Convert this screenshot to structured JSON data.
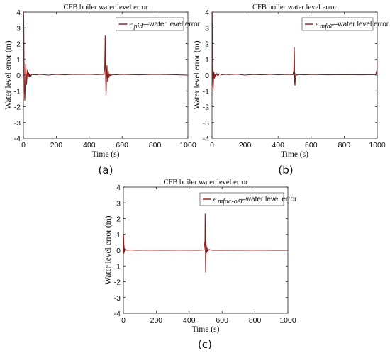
{
  "series_color": "#8b1a1a",
  "chart_data": [
    {
      "type": "line",
      "panel_label": "(a)",
      "title": "CFB boiler water level error",
      "xlabel": "Time  (s)",
      "ylabel": "Water level error  (m)",
      "xlim": [
        0,
        1000
      ],
      "ylim": [
        -4,
        4
      ],
      "xticks": [
        "0",
        "200",
        "400",
        "600",
        "800",
        "1000"
      ],
      "yticks": [
        "4",
        "3",
        "2",
        "1",
        "0",
        "-1",
        "-2",
        "-3",
        "-4"
      ],
      "grid": false,
      "legend_position": "top-right",
      "series": [
        {
          "name": "e pid —water level error",
          "legend_symbol": "e",
          "legend_subscript": "pid",
          "legend_text": "—water level error",
          "x": [
            0,
            1,
            2,
            4,
            6,
            8,
            10,
            12,
            14,
            16,
            18,
            20,
            22,
            25,
            28,
            32,
            36,
            40,
            45,
            50,
            60,
            80,
            100,
            150,
            200,
            250,
            300,
            350,
            400,
            450,
            480,
            490,
            494,
            496,
            497,
            498,
            500,
            502,
            504,
            506,
            508,
            510,
            512,
            514,
            516,
            518,
            520,
            525,
            530,
            540,
            560,
            600,
            700,
            800,
            900,
            1000
          ],
          "y": [
            4.0,
            4.0,
            3.5,
            1.0,
            -0.8,
            -1.6,
            -1.3,
            -0.2,
            0.7,
            0.3,
            -0.6,
            -0.5,
            0.0,
            0.3,
            -0.2,
            0.15,
            -0.12,
            0.1,
            -0.07,
            0.05,
            0.03,
            0.02,
            0.05,
            0.0,
            0.05,
            0.02,
            0.05,
            0.04,
            0.05,
            0.03,
            0.05,
            0.04,
            0.4,
            1.6,
            2.5,
            1.8,
            -0.2,
            -1.3,
            -0.8,
            0.2,
            0.6,
            0.1,
            -0.4,
            -0.1,
            0.25,
            0.05,
            -0.15,
            0.08,
            -0.05,
            0.04,
            0.02,
            0.05,
            0.02,
            0.05,
            0.03,
            0.0
          ]
        }
      ]
    },
    {
      "type": "line",
      "panel_label": "(b)",
      "title": "CFB boiler water level error",
      "xlabel": "Time  (s)",
      "ylabel": "Water level error  (m)",
      "xlim": [
        0,
        1000
      ],
      "ylim": [
        -4,
        4
      ],
      "xticks": [
        "0",
        "200",
        "400",
        "600",
        "800",
        "1000"
      ],
      "yticks": [
        "4",
        "3",
        "2",
        "1",
        "0",
        "-1",
        "-2",
        "-3",
        "-4"
      ],
      "grid": false,
      "legend_position": "top-right",
      "series": [
        {
          "name": "e mfac —water level error",
          "legend_symbol": "e",
          "legend_subscript": "mfac",
          "legend_text": "—water level error",
          "x": [
            0,
            1,
            2,
            3,
            5,
            7,
            9,
            11,
            13,
            15,
            18,
            22,
            28,
            35,
            45,
            60,
            80,
            100,
            150,
            200,
            250,
            300,
            350,
            400,
            450,
            490,
            495,
            497,
            498,
            499,
            500,
            502,
            504,
            506,
            508,
            510,
            515,
            520,
            530,
            560,
            600,
            700,
            800,
            900,
            990,
            998,
            1000
          ],
          "y": [
            4.0,
            4.0,
            3.0,
            1.0,
            -0.6,
            -0.9,
            -0.3,
            0.2,
            0.1,
            -0.2,
            0.05,
            -0.08,
            0.1,
            -0.05,
            0.08,
            0.02,
            0.05,
            0.03,
            0.06,
            0.0,
            0.04,
            0.02,
            0.05,
            0.02,
            0.04,
            0.03,
            0.3,
            1.2,
            1.75,
            1.0,
            -0.4,
            -0.65,
            -0.3,
            0.1,
            -0.1,
            0.05,
            0.0,
            0.04,
            0.03,
            0.02,
            0.04,
            0.02,
            0.03,
            0.02,
            0.03,
            0.3,
            0.7
          ]
        }
      ]
    },
    {
      "type": "line",
      "panel_label": "(c)",
      "title": "CFB boiler water level error",
      "xlabel": "Time  (s)",
      "ylabel": "Water level error  (m)",
      "xlim": [
        0,
        1000
      ],
      "ylim": [
        -4,
        4
      ],
      "xticks": [
        "0",
        "200",
        "400",
        "600",
        "800",
        "1000"
      ],
      "yticks": [
        "4",
        "3",
        "2",
        "1",
        "0",
        "-1",
        "-2",
        "-3",
        "-4"
      ],
      "grid": false,
      "legend_position": "top-right",
      "series": [
        {
          "name": "e mfac-oer —water level error",
          "legend_symbol": "e",
          "legend_subscript": "mfac-oer",
          "legend_text": "—water level error",
          "x": [
            0,
            1,
            2,
            3,
            4,
            6,
            8,
            10,
            15,
            20,
            40,
            80,
            150,
            250,
            350,
            450,
            490,
            496,
            497,
            498,
            499,
            500,
            501,
            502,
            503,
            504,
            506,
            508,
            512,
            520,
            540,
            600,
            700,
            800,
            900,
            1000
          ],
          "y": [
            0.0,
            1.0,
            0.6,
            -0.2,
            0.3,
            -0.1,
            0.1,
            0.0,
            0.05,
            0.0,
            0.02,
            0.0,
            0.01,
            0.0,
            0.01,
            0.0,
            0.02,
            0.6,
            2.3,
            1.6,
            -0.5,
            -1.4,
            -0.6,
            0.5,
            -0.2,
            0.3,
            -0.15,
            0.15,
            -0.06,
            0.05,
            0.0,
            0.01,
            0.0,
            0.01,
            0.0,
            0.0
          ]
        }
      ]
    }
  ]
}
